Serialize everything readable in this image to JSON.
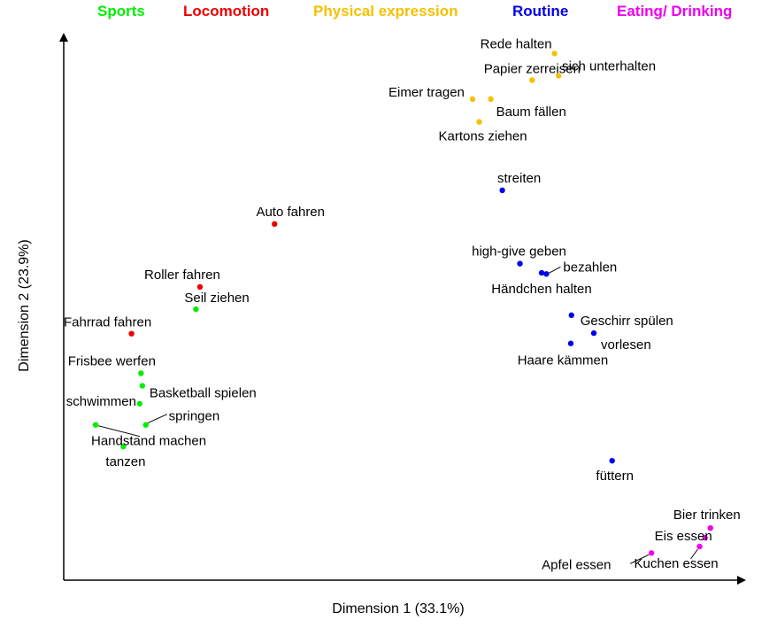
{
  "chart_data": {
    "type": "scatter",
    "xlabel": "Dimension 1 (33.1%)",
    "ylabel": "Dimension 2 (23.9%)",
    "xlim": [
      0,
      100
    ],
    "ylim": [
      0,
      100
    ],
    "grid": false,
    "legend_position": "top",
    "series": [
      {
        "name": "Sports",
        "color": "#00ee00",
        "points": [
          {
            "label": "Seil ziehen",
            "x": 19.5,
            "y": 49.9
          },
          {
            "label": "Frisbee werfen",
            "x": 11.4,
            "y": 38.1
          },
          {
            "label": "Basketball spielen",
            "x": 11.6,
            "y": 35.8
          },
          {
            "label": "schwimmen",
            "x": 11.2,
            "y": 32.5
          },
          {
            "label": "springen",
            "x": 12.1,
            "y": 28.6
          },
          {
            "label": "Handstand machen",
            "x": 4.7,
            "y": 28.6
          },
          {
            "label": "tanzen",
            "x": 8.8,
            "y": 24.6
          }
        ]
      },
      {
        "name": "Locomotion",
        "color": "#ee0000",
        "points": [
          {
            "label": "Auto fahren",
            "x": 31.1,
            "y": 65.6
          },
          {
            "label": "Roller fahren",
            "x": 20.1,
            "y": 54.0
          },
          {
            "label": "Fahrrad fahren",
            "x": 10.0,
            "y": 45.4
          }
        ]
      },
      {
        "name": "Physical expression",
        "color": "#f5c000",
        "points": [
          {
            "label": "Rede halten",
            "x": 72.4,
            "y": 97.0
          },
          {
            "label": "sich unterhalten",
            "x": 73.0,
            "y": 92.9
          },
          {
            "label": "Papier zerreisen",
            "x": 69.1,
            "y": 92.1
          },
          {
            "label": "Eimer tragen",
            "x": 60.3,
            "y": 88.6
          },
          {
            "label": "Baum fällen",
            "x": 63.0,
            "y": 88.6
          },
          {
            "label": "Kartons ziehen",
            "x": 61.3,
            "y": 84.4
          }
        ]
      },
      {
        "name": "Routine",
        "color": "#0000ee",
        "points": [
          {
            "label": "streiten",
            "x": 64.7,
            "y": 71.8
          },
          {
            "label": "high-give geben",
            "x": 67.3,
            "y": 58.3
          },
          {
            "label": "bezahlen",
            "x": 71.2,
            "y": 56.4
          },
          {
            "label": "Händchen halten",
            "x": 70.5,
            "y": 56.6
          },
          {
            "label": "Geschirr spülen",
            "x": 74.9,
            "y": 48.8
          },
          {
            "label": "vorlesen",
            "x": 78.2,
            "y": 45.5
          },
          {
            "label": "Haare kämmen",
            "x": 74.8,
            "y": 43.6
          },
          {
            "label": "füttern",
            "x": 80.9,
            "y": 22.0
          }
        ]
      },
      {
        "name": "Eating/ Drinking",
        "color": "#ee00ee",
        "points": [
          {
            "label": "Bier trinken",
            "x": 95.4,
            "y": 9.6
          },
          {
            "label": "Eis essen",
            "x": 94.6,
            "y": 7.8
          },
          {
            "label": "Kuchen essen",
            "x": 93.8,
            "y": 6.2
          },
          {
            "label": "Apfel essen",
            "x": 86.7,
            "y": 5.0
          }
        ]
      }
    ]
  }
}
